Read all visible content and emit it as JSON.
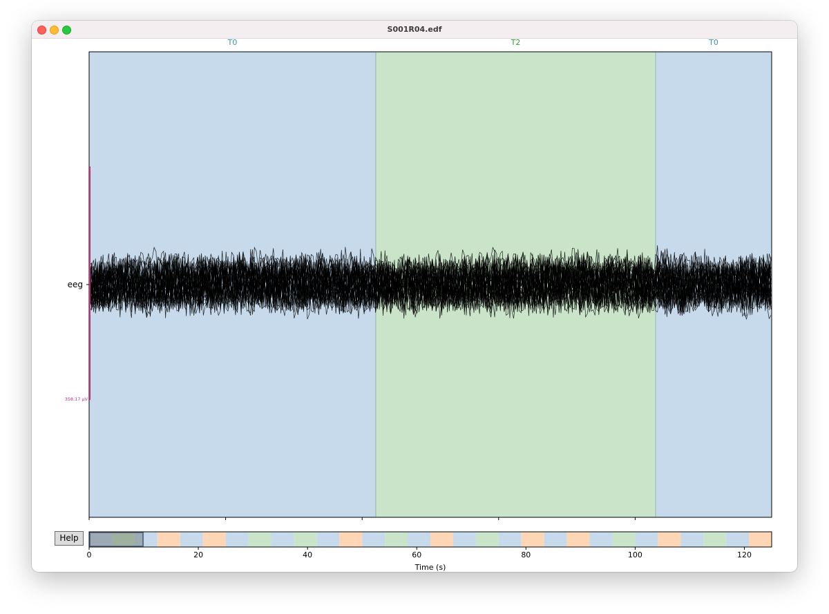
{
  "window": {
    "title": "S001R04.edf"
  },
  "help_button": {
    "label": "Help"
  },
  "main_plot": {
    "channel_label": "eeg",
    "scale_label": "358.17 µV",
    "x_range": [
      0,
      10
    ],
    "x_ticks": [
      "0",
      "2",
      "4",
      "6",
      "8"
    ],
    "x_tick_values": [
      0,
      2,
      4,
      6,
      8
    ],
    "annotations": [
      {
        "label": "T0",
        "start": 0.0,
        "end": 4.2,
        "color": "#c6daec",
        "label_color": "#3a8fbd"
      },
      {
        "label": "T2",
        "start": 4.2,
        "end": 8.3,
        "color": "#c9e4c9",
        "label_color": "#2ca02c"
      },
      {
        "label": "T0",
        "start": 8.3,
        "end": 10.0,
        "color": "#c6daec",
        "label_color": "#3a8fbd"
      }
    ]
  },
  "overview_bar": {
    "x_range": [
      0,
      125
    ],
    "x_ticks": [
      "0",
      "20",
      "40",
      "60",
      "80",
      "100",
      "120"
    ],
    "x_tick_values": [
      0,
      20,
      40,
      60,
      80,
      100,
      120
    ],
    "xlabel": "Time (s)",
    "view_window": [
      0,
      10
    ],
    "segment_colors": {
      "T0": "#c6daec",
      "T1": "#fdd6b5",
      "T2": "#c9e4c9"
    },
    "segments": [
      "T0",
      "T2",
      "T0",
      "T1",
      "T0",
      "T1",
      "T0",
      "T2",
      "T0",
      "T2",
      "T0",
      "T1",
      "T0",
      "T2",
      "T0",
      "T1",
      "T0",
      "T2",
      "T0",
      "T1",
      "T0",
      "T1",
      "T0",
      "T2",
      "T0",
      "T1",
      "T0",
      "T2",
      "T0",
      "T1"
    ]
  }
}
